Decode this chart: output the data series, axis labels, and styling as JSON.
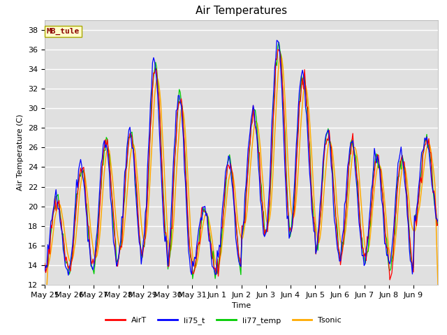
{
  "title": "Air Temperatures",
  "xlabel": "Time",
  "ylabel": "Air Temperature (C)",
  "ylim": [
    12,
    39
  ],
  "yticks": [
    12,
    14,
    16,
    18,
    20,
    22,
    24,
    26,
    28,
    30,
    32,
    34,
    36,
    38
  ],
  "bg_color": "#e0e0e0",
  "site_label": "MB_tule",
  "site_label_color": "#8b0000",
  "site_label_bg": "#ffffcc",
  "site_label_border": "#aaa800",
  "legend_entries": [
    "AirT",
    "li75_t",
    "li77_temp",
    "Tsonic"
  ],
  "line_colors": [
    "#ff0000",
    "#0000ff",
    "#00cc00",
    "#ffaa00"
  ],
  "font_size": 8,
  "title_font_size": 11
}
